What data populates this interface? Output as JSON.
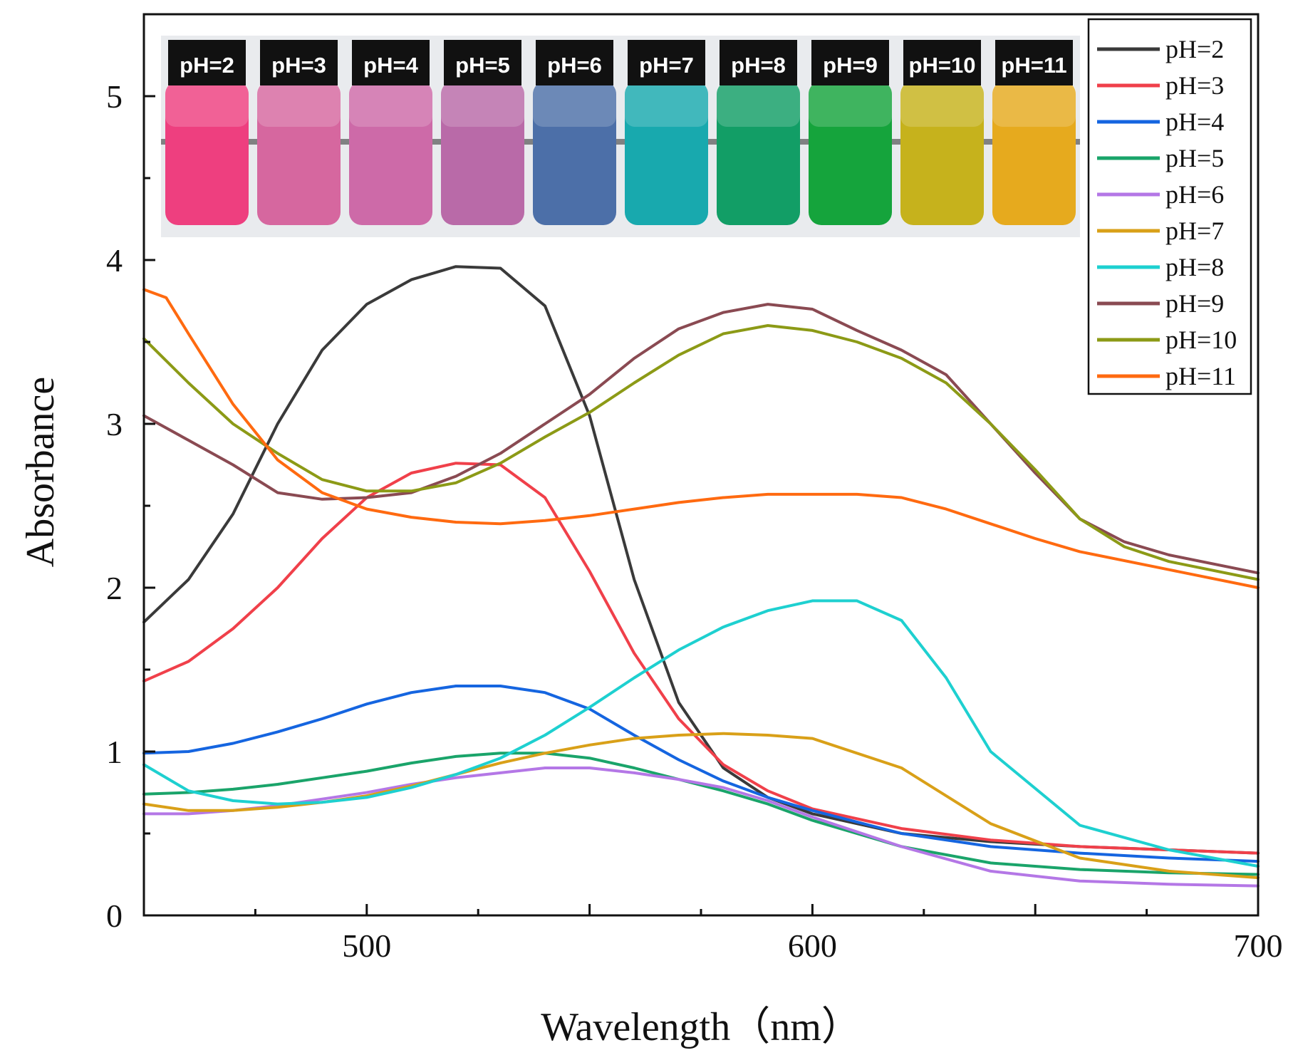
{
  "chart_data": {
    "type": "line",
    "xlabel": "Wavelength（nm）",
    "ylabel": "Absorbance",
    "xlim": [
      450,
      700
    ],
    "ylim": [
      0,
      5.5
    ],
    "xticks": [
      500,
      600,
      700
    ],
    "yticks": [
      0,
      1,
      2,
      3,
      4,
      5
    ],
    "grid": false,
    "legend": "top-right",
    "series": [
      {
        "name": "pH=2",
        "color": "#3a3a3a",
        "x": [
          450,
          460,
          470,
          480,
          490,
          500,
          510,
          520,
          530,
          540,
          550,
          560,
          570,
          580,
          590,
          600,
          620,
          640,
          660,
          680,
          700
        ],
        "y": [
          1.79,
          2.05,
          2.45,
          3.0,
          3.45,
          3.73,
          3.88,
          3.96,
          3.95,
          3.72,
          3.05,
          2.05,
          1.3,
          0.9,
          0.72,
          0.62,
          0.5,
          0.45,
          0.42,
          0.4,
          0.38
        ]
      },
      {
        "name": "pH=3",
        "color": "#f0404a",
        "x": [
          450,
          460,
          470,
          480,
          490,
          500,
          510,
          520,
          530,
          540,
          550,
          560,
          570,
          580,
          590,
          600,
          620,
          640,
          660,
          680,
          700
        ],
        "y": [
          1.43,
          1.55,
          1.75,
          2.0,
          2.3,
          2.55,
          2.7,
          2.76,
          2.75,
          2.55,
          2.1,
          1.6,
          1.2,
          0.92,
          0.76,
          0.65,
          0.53,
          0.46,
          0.42,
          0.4,
          0.38
        ]
      },
      {
        "name": "pH=4",
        "color": "#1565e0",
        "x": [
          450,
          460,
          470,
          480,
          490,
          500,
          510,
          520,
          530,
          540,
          550,
          560,
          570,
          580,
          590,
          600,
          620,
          640,
          660,
          680,
          700
        ],
        "y": [
          0.99,
          1.0,
          1.05,
          1.12,
          1.2,
          1.29,
          1.36,
          1.4,
          1.4,
          1.36,
          1.26,
          1.1,
          0.95,
          0.82,
          0.72,
          0.64,
          0.5,
          0.42,
          0.38,
          0.35,
          0.33
        ]
      },
      {
        "name": "pH=5",
        "color": "#1aa46a",
        "x": [
          450,
          460,
          470,
          480,
          490,
          500,
          510,
          520,
          530,
          540,
          550,
          560,
          570,
          580,
          590,
          600,
          620,
          640,
          660,
          680,
          700
        ],
        "y": [
          0.74,
          0.75,
          0.77,
          0.8,
          0.84,
          0.88,
          0.93,
          0.97,
          0.99,
          0.99,
          0.96,
          0.9,
          0.83,
          0.76,
          0.68,
          0.58,
          0.42,
          0.32,
          0.28,
          0.26,
          0.25
        ]
      },
      {
        "name": "pH=6",
        "color": "#b477e6",
        "x": [
          450,
          460,
          470,
          480,
          490,
          500,
          510,
          520,
          530,
          540,
          550,
          560,
          570,
          580,
          590,
          600,
          620,
          640,
          660,
          680,
          700
        ],
        "y": [
          0.62,
          0.62,
          0.64,
          0.67,
          0.71,
          0.75,
          0.8,
          0.84,
          0.87,
          0.9,
          0.9,
          0.87,
          0.83,
          0.78,
          0.7,
          0.6,
          0.42,
          0.27,
          0.21,
          0.19,
          0.18
        ]
      },
      {
        "name": "pH=7",
        "color": "#d9a018",
        "x": [
          450,
          460,
          470,
          480,
          490,
          500,
          510,
          520,
          530,
          540,
          550,
          560,
          570,
          580,
          590,
          600,
          620,
          640,
          660,
          680,
          700
        ],
        "y": [
          0.68,
          0.64,
          0.64,
          0.66,
          0.69,
          0.73,
          0.79,
          0.86,
          0.93,
          0.99,
          1.04,
          1.08,
          1.1,
          1.11,
          1.1,
          1.08,
          0.9,
          0.56,
          0.35,
          0.27,
          0.23
        ]
      },
      {
        "name": "pH=8",
        "color": "#1ed0d0",
        "x": [
          450,
          460,
          470,
          480,
          490,
          500,
          510,
          520,
          530,
          540,
          550,
          560,
          570,
          580,
          590,
          600,
          610,
          620,
          630,
          640,
          660,
          680,
          700
        ],
        "y": [
          0.92,
          0.76,
          0.7,
          0.68,
          0.69,
          0.72,
          0.78,
          0.86,
          0.96,
          1.1,
          1.27,
          1.45,
          1.62,
          1.76,
          1.86,
          1.92,
          1.92,
          1.8,
          1.45,
          1.0,
          0.55,
          0.4,
          0.3
        ]
      },
      {
        "name": "pH=9",
        "color": "#8a4a52",
        "x": [
          450,
          460,
          470,
          480,
          490,
          500,
          510,
          520,
          530,
          540,
          550,
          560,
          570,
          580,
          590,
          600,
          610,
          620,
          630,
          640,
          650,
          660,
          670,
          680,
          700
        ],
        "y": [
          3.05,
          2.9,
          2.75,
          2.58,
          2.54,
          2.55,
          2.58,
          2.68,
          2.82,
          3.0,
          3.18,
          3.4,
          3.58,
          3.68,
          3.73,
          3.7,
          3.57,
          3.45,
          3.3,
          3.0,
          2.7,
          2.42,
          2.28,
          2.2,
          2.09
        ]
      },
      {
        "name": "pH=10",
        "color": "#8c9a16",
        "x": [
          450,
          460,
          470,
          480,
          490,
          500,
          510,
          520,
          530,
          540,
          550,
          560,
          570,
          580,
          590,
          600,
          610,
          620,
          630,
          640,
          650,
          660,
          670,
          680,
          700
        ],
        "y": [
          3.52,
          3.25,
          3.0,
          2.82,
          2.66,
          2.59,
          2.59,
          2.64,
          2.76,
          2.92,
          3.07,
          3.25,
          3.42,
          3.55,
          3.6,
          3.57,
          3.5,
          3.4,
          3.25,
          3.0,
          2.72,
          2.42,
          2.25,
          2.16,
          2.05
        ]
      },
      {
        "name": "pH=11",
        "color": "#ff6a10",
        "x": [
          450,
          455,
          460,
          470,
          480,
          490,
          500,
          510,
          520,
          530,
          540,
          550,
          560,
          570,
          580,
          590,
          600,
          610,
          620,
          630,
          640,
          650,
          660,
          680,
          700
        ],
        "y": [
          3.82,
          3.77,
          3.55,
          3.12,
          2.78,
          2.58,
          2.48,
          2.43,
          2.4,
          2.39,
          2.41,
          2.44,
          2.48,
          2.52,
          2.55,
          2.57,
          2.57,
          2.57,
          2.55,
          2.48,
          2.39,
          2.3,
          2.22,
          2.11,
          2.0
        ]
      }
    ]
  },
  "inset": {
    "vials": [
      {
        "label": "pH=2",
        "color": "#ee3f7f"
      },
      {
        "label": "pH=3",
        "color": "#d6679f"
      },
      {
        "label": "pH=4",
        "color": "#cd6aa8"
      },
      {
        "label": "pH=5",
        "color": "#b96aa8"
      },
      {
        "label": "pH=6",
        "color": "#4c6fa8"
      },
      {
        "label": "pH=7",
        "color": "#18a9ae"
      },
      {
        "label": "pH=8",
        "color": "#129e66"
      },
      {
        "label": "pH=9",
        "color": "#15a43c"
      },
      {
        "label": "pH=10",
        "color": "#c6b21c"
      },
      {
        "label": "pH=11",
        "color": "#e6aa1e"
      }
    ]
  }
}
